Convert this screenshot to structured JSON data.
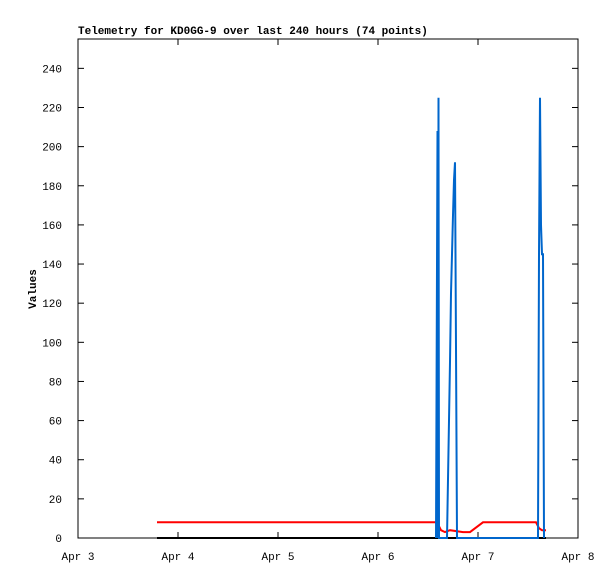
{
  "chart_data": {
    "type": "line",
    "title": "Telemetry for KD0GG-9 over last 240 hours (74 points)",
    "y_label": "Values",
    "xlim": [
      3,
      8
    ],
    "xticks": [
      {
        "value": 3,
        "label": "Apr 3"
      },
      {
        "value": 4,
        "label": "Apr 4"
      },
      {
        "value": 5,
        "label": "Apr 5"
      },
      {
        "value": 6,
        "label": "Apr 6"
      },
      {
        "value": 7,
        "label": "Apr 7"
      },
      {
        "value": 8,
        "label": "Apr 8"
      }
    ],
    "ylim": [
      0,
      255
    ],
    "yticks": [
      0,
      20,
      40,
      60,
      80,
      100,
      120,
      140,
      160,
      180,
      200,
      220,
      240
    ],
    "series": [
      {
        "color": "#000000",
        "x": [
          3.79,
          7.68
        ],
        "values": [
          0,
          0
        ]
      },
      {
        "color": "#ff0000",
        "x": [
          3.79,
          6.59,
          6.63,
          6.67,
          6.72,
          6.85,
          6.92,
          7.05,
          7.58,
          7.61,
          7.64,
          7.68
        ],
        "values": [
          8,
          8,
          4,
          3,
          4,
          3,
          3,
          8,
          8,
          5,
          4,
          4
        ]
      },
      {
        "color": "#0066cc",
        "x": [
          6.58,
          6.595,
          6.6,
          6.605,
          6.61,
          6.69,
          6.7,
          6.71,
          6.72,
          6.73,
          6.74,
          6.75,
          6.76,
          6.77,
          6.78,
          6.79,
          7.6,
          7.61,
          7.62,
          7.63,
          7.64,
          7.65,
          7.66
        ],
        "values": [
          0,
          208,
          0,
          225,
          0,
          0,
          30,
          60,
          90,
          125,
          145,
          165,
          183,
          192,
          97,
          0,
          0,
          145,
          225,
          160,
          145,
          145,
          0
        ]
      }
    ]
  }
}
